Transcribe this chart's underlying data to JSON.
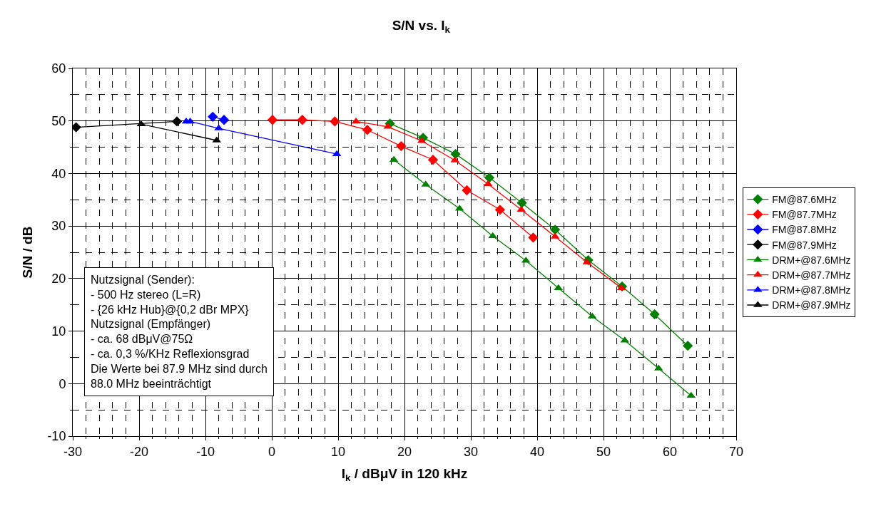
{
  "chart_data": {
    "type": "line",
    "title": "S/N vs. I$_{k}$",
    "xlabel": "I$_{k}$ / dBμV in 120 kHz",
    "ylabel": "S/N / dB",
    "xlim": [
      -30,
      70
    ],
    "ylim": [
      -10,
      60
    ],
    "xticks": [
      -30,
      {
        "value": -28,
        "label": null
      },
      {
        "value": -26,
        "label": null
      },
      {
        "value": -24,
        "label": null
      },
      {
        "value": -22,
        "label": null
      },
      -20,
      {
        "value": -18,
        "label": null
      },
      {
        "value": -16,
        "label": null
      },
      {
        "value": -14,
        "label": null
      },
      {
        "value": -12,
        "label": null
      },
      -10,
      {
        "value": -8,
        "label": null
      },
      {
        "value": -6,
        "label": null
      },
      {
        "value": -4,
        "label": null
      },
      {
        "value": -2,
        "label": null
      },
      0,
      {
        "value": 2,
        "label": null
      },
      {
        "value": 4,
        "label": null
      },
      {
        "value": 6,
        "label": null
      },
      {
        "value": 8,
        "label": null
      },
      10,
      {
        "value": 12,
        "label": null
      },
      {
        "value": 14,
        "label": null
      },
      {
        "value": 16,
        "label": null
      },
      {
        "value": 18,
        "label": null
      },
      20,
      {
        "value": 22,
        "label": null
      },
      {
        "value": 24,
        "label": null
      },
      {
        "value": 26,
        "label": null
      },
      {
        "value": 28,
        "label": null
      },
      30,
      {
        "value": 32,
        "label": null
      },
      {
        "value": 34,
        "label": null
      },
      {
        "value": 36,
        "label": null
      },
      {
        "value": 38,
        "label": null
      },
      40,
      {
        "value": 42,
        "label": null
      },
      {
        "value": 44,
        "label": null
      },
      {
        "value": 46,
        "label": null
      },
      {
        "value": 48,
        "label": null
      },
      50,
      {
        "value": 52,
        "label": null
      },
      {
        "value": 54,
        "label": null
      },
      {
        "value": 56,
        "label": null
      },
      {
        "value": 58,
        "label": null
      },
      60,
      {
        "value": 62,
        "label": null
      },
      {
        "value": 64,
        "label": null
      },
      {
        "value": 66,
        "label": null
      },
      {
        "value": 68,
        "label": null
      },
      70
    ],
    "yticks": [
      -10,
      {
        "value": -5,
        "label": null
      },
      0,
      {
        "value": 5,
        "label": null
      },
      10,
      {
        "value": 15,
        "label": null
      },
      20,
      {
        "value": 25,
        "label": null
      },
      30,
      {
        "value": 35,
        "label": null
      },
      40,
      {
        "value": 45,
        "label": null
      },
      50,
      {
        "value": 55,
        "label": null
      },
      60
    ],
    "grid": true,
    "legend": "right",
    "line_style": "solid",
    "annotations": [
      "Nutzsignal (Sender):\n- 500 Hz stereo (L=R)\n- {26 kHz Hub}@{0,2 dBr MPX}\nNutzsignal (Empfänger)\n- ca. 68 dBμV@75Ω\n- ca. 0,3 %/KHz Reflexionsgrad\nDie Werte bei 87.9 MHz sind durch\n88.0 MHz beeinträchtigt"
    ],
    "series": [
      {
        "name": "FM@87.6MHz",
        "color": "#008000",
        "marker": "diamond",
        "x": [
          17.8,
          22.8,
          27.7,
          32.8,
          37.7,
          42.7,
          47.7,
          52.8,
          57.7,
          62.7
        ],
        "values": [
          49.5,
          46.8,
          43.7,
          39.2,
          34.4,
          29.3,
          23.5,
          18.5,
          13.2,
          7.2
        ]
      },
      {
        "name": "FM@87.7MHz",
        "color": "#ff0000",
        "marker": "diamond",
        "x": [
          0.1,
          4.6,
          9.5,
          14.4,
          19.5,
          24.3,
          29.4,
          34.4,
          39.4
        ],
        "values": [
          50.2,
          50.2,
          49.9,
          48.3,
          45.2,
          42.6,
          36.8,
          33.1,
          27.8
        ]
      },
      {
        "name": "FM@87.8MHz",
        "color": "#0000ff",
        "marker": "diamond",
        "x": [
          -8.9,
          -7.2
        ],
        "values": [
          50.8,
          50.2
        ]
      },
      {
        "name": "FM@87.9MHz",
        "color": "#000000",
        "marker": "diamond",
        "x": [
          -29.5,
          -19.7,
          -14.3
        ],
        "values": [
          48.8,
          null,
          49.9
        ]
      },
      {
        "name": "DRM+@87.6MHz",
        "color": "#008000",
        "marker": "triangle",
        "x": [
          18.4,
          23.2,
          28.3,
          33.3,
          38.3,
          43.2,
          48.3,
          53.2,
          58.3,
          63.2
        ],
        "values": [
          42.6,
          37.9,
          33.3,
          28.1,
          23.4,
          18.2,
          12.8,
          8.2,
          2.9,
          -2.3
        ]
      },
      {
        "name": "DRM+@87.7MHz",
        "color": "#ff0000",
        "marker": "triangle",
        "x": [
          12.7,
          17.5,
          22.6,
          27.6,
          32.6,
          37.6,
          42.7,
          47.5,
          52.7
        ],
        "values": [
          49.9,
          48.9,
          46.2,
          42.5,
          38.0,
          33.1,
          28.0,
          23.1,
          18.2
        ]
      },
      {
        "name": "DRM+@87.8MHz",
        "color": "#0000ff",
        "marker": "triangle",
        "x": [
          -12.9,
          -12.3,
          -8.0,
          9.8
        ],
        "values": [
          49.9,
          49.9,
          48.6,
          43.7
        ]
      },
      {
        "name": "DRM+@87.9MHz",
        "color": "#000000",
        "marker": "triangle",
        "x": [
          -19.7,
          -8.3
        ],
        "values": [
          49.4,
          46.3
        ]
      }
    ]
  }
}
